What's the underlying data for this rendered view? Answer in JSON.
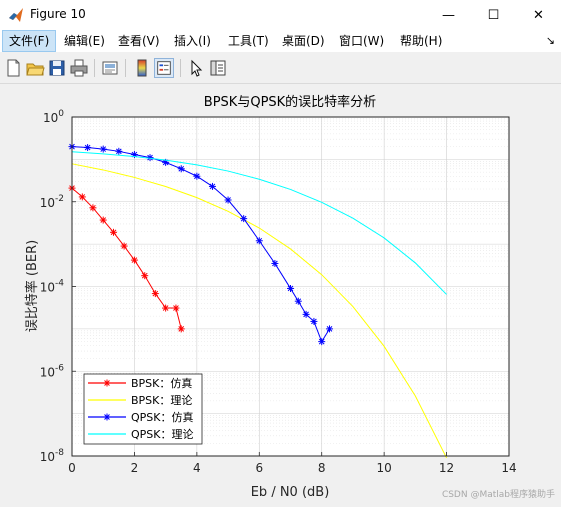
{
  "window": {
    "title": "Figure 10",
    "minimize": "—",
    "maximize": "☐",
    "close": "✕"
  },
  "menubar": {
    "items": [
      "文件(F)",
      "编辑(E)",
      "查看(V)",
      "插入(I)",
      "工具(T)",
      "桌面(D)",
      "窗口(W)",
      "帮助(H)"
    ]
  },
  "toolbar": {
    "icons": [
      "new-figure-icon",
      "open-file-icon",
      "save-icon",
      "print-icon",
      "print-preview-icon",
      "colorbar-icon",
      "legend-icon",
      "pointer-icon",
      "property-inspector-icon"
    ]
  },
  "colors": {
    "bpsk_sim": "#ff0000",
    "bpsk_theory": "#ffff00",
    "qpsk_sim": "#0000ff",
    "qpsk_theory": "#00ffff"
  },
  "watermark": "CSDN @Matlab程序猿助手",
  "chart_data": {
    "type": "line",
    "title": "BPSK与QPSK的误比特率分析",
    "xlabel": "Eb / N0 (dB)",
    "ylabel": "误比特率 (BER)",
    "xlim": [
      0,
      14
    ],
    "ylim_log10": [
      -8,
      0
    ],
    "yscale": "log",
    "grid": "major and minor",
    "legend_position": "bottom-left",
    "xticks": [
      "0",
      "2",
      "4",
      "6",
      "8",
      "10",
      "12",
      "14"
    ],
    "yticks": [
      {
        "base": "10",
        "exp": "0"
      },
      {
        "base": "10",
        "exp": "-2"
      },
      {
        "base": "10",
        "exp": "-4"
      },
      {
        "base": "10",
        "exp": "-6"
      },
      {
        "base": "10",
        "exp": "-8"
      }
    ],
    "series": [
      {
        "name": "BPSK：仿真",
        "marker": "*",
        "color": "#ff0000",
        "x": [
          0,
          0.33,
          0.67,
          1,
          1.33,
          1.67,
          2,
          2.33,
          2.67,
          3,
          3.33,
          3.5
        ],
        "y": [
          0.021,
          0.013,
          0.0072,
          0.0037,
          0.0019,
          0.0009,
          0.00042,
          0.00018,
          6.8e-05,
          3.1e-05,
          3.1e-05,
          1e-05
        ]
      },
      {
        "name": "BPSK：理论",
        "marker": "",
        "color": "#ffff00",
        "x": [
          0,
          1,
          2,
          3,
          4,
          5,
          6,
          7,
          8,
          9,
          10,
          11,
          12
        ],
        "y": [
          0.0786,
          0.0563,
          0.0375,
          0.0229,
          0.0125,
          0.00595,
          0.0024,
          0.00077,
          0.00019,
          3.36e-05,
          3.87e-06,
          2.6e-07,
          9e-09
        ]
      },
      {
        "name": "QPSK：仿真",
        "marker": "*",
        "color": "#0000ff",
        "x": [
          0,
          0.5,
          1,
          1.5,
          2,
          2.5,
          3,
          3.5,
          4,
          4.5,
          5,
          5.5,
          6,
          6.5,
          7,
          7.25,
          7.5,
          7.75,
          8,
          8.25
        ],
        "y": [
          0.2,
          0.19,
          0.175,
          0.155,
          0.13,
          0.11,
          0.085,
          0.06,
          0.04,
          0.023,
          0.011,
          0.004,
          0.0012,
          0.00035,
          9e-05,
          4.5e-05,
          2.2e-05,
          1.5e-05,
          5e-06,
          1e-05
        ]
      },
      {
        "name": "QPSK：理论",
        "marker": "",
        "color": "#00ffff",
        "x": [
          0,
          1,
          2,
          3,
          4,
          5,
          6,
          7,
          8,
          9,
          10,
          11,
          12
        ],
        "y": [
          0.151,
          0.135,
          0.117,
          0.096,
          0.074,
          0.053,
          0.034,
          0.0195,
          0.0097,
          0.0041,
          0.0014,
          0.00036,
          6.5e-05
        ]
      }
    ]
  }
}
